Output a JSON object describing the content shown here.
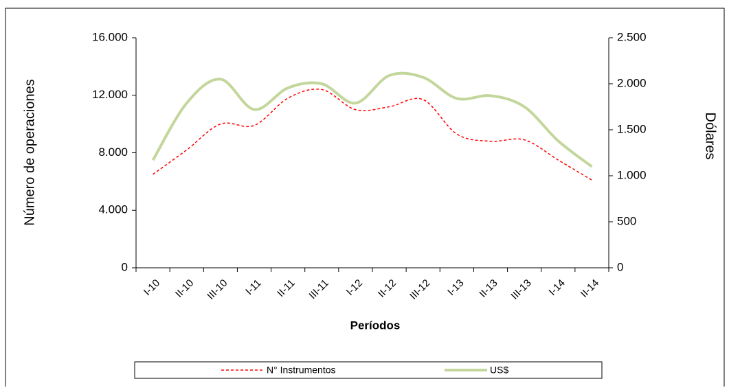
{
  "chart_data": {
    "type": "line",
    "x_label": "Períodos",
    "y_label": "Número de operaciones",
    "y2_label": "Dólares",
    "categories": [
      "I-10",
      "II-10",
      "III-10",
      "I-11",
      "II-11",
      "III-11",
      "I-12",
      "II-12",
      "III-12",
      "I-13",
      "II-13",
      "III-13",
      "I-14",
      "II-14"
    ],
    "series": [
      {
        "name": "N° Instrumentos",
        "color": "#ff0000",
        "dash": true,
        "values": [
          6500,
          8200,
          10000,
          9900,
          11800,
          12400,
          11000,
          11200,
          11700,
          9300,
          8800,
          8900,
          7500,
          6100
        ]
      },
      {
        "name": "US$",
        "color": "#c3d69b",
        "axis": "y2",
        "values": [
          1170,
          1790,
          2050,
          1720,
          1955,
          2000,
          1790,
          2090,
          2070,
          1840,
          1870,
          1750,
          1380,
          1100
        ]
      }
    ],
    "ylim": [
      0,
      16000
    ],
    "yticks": [
      0,
      {
        "value": 4000,
        "label": "4.000"
      },
      {
        "value": 8000,
        "label": "8.000"
      },
      {
        "value": 12000,
        "label": "12.000"
      },
      {
        "value": 16000,
        "label": "16.000"
      }
    ],
    "y2lim": [
      0,
      2500
    ],
    "y2ticks": [
      0,
      500,
      {
        "value": 1000,
        "label": "1.000"
      },
      {
        "value": 1500,
        "label": "1.500"
      },
      {
        "value": 2000,
        "label": "2.000"
      },
      {
        "value": 2500,
        "label": "2.500"
      }
    ],
    "legend": "bottom",
    "grid": false
  }
}
